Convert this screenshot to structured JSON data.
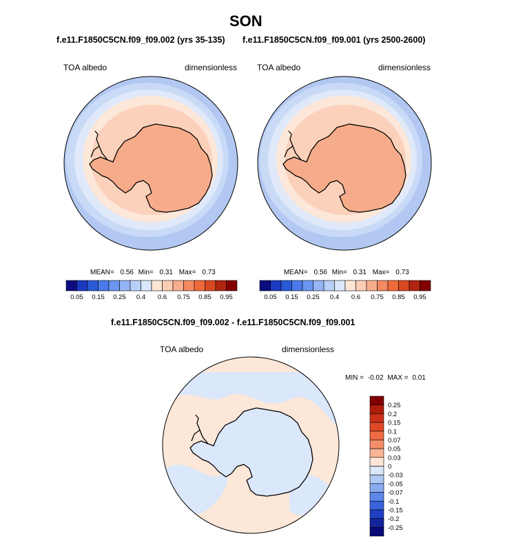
{
  "title": "SON",
  "panels": [
    {
      "subtitle": "f.e11.F1850C5CN.f09_f09.002 (yrs 35-135)",
      "variable": "TOA albedo",
      "units": "dimensionless",
      "stats": {
        "mean_label": "MEAN=",
        "mean": "0.56",
        "min_label": "Min=",
        "min": "0.31",
        "max_label": "Max=",
        "max": "0.73"
      }
    },
    {
      "subtitle": "f.e11.F1850C5CN.f09_f09.001 (yrs 2500-2600)",
      "variable": "TOA albedo",
      "units": "dimensionless",
      "stats": {
        "mean_label": "MEAN=",
        "mean": "0.56",
        "min_label": "Min=",
        "min": "0.31",
        "max_label": "Max=",
        "max": "0.73"
      }
    }
  ],
  "diff_panel": {
    "subtitle": "f.e11.F1850C5CN.f09_f09.002 - f.e11.F1850C5CN.f09_f09.001",
    "variable": "TOA albedo",
    "units": "dimensionless",
    "minmax": {
      "min_label": "MIN =",
      "min": "-0.02",
      "max_label": "MAX =",
      "max": "0.01"
    }
  },
  "chart_data": [
    {
      "type": "heatmap",
      "projection": "south polar stereographic",
      "title": "f.e11.F1850C5CN.f09_f09.002 (yrs 35-135)",
      "colorbar": {
        "orientation": "horizontal",
        "levels": [
          0.05,
          0.1,
          0.15,
          0.2,
          0.25,
          0.3,
          0.4,
          0.5,
          0.6,
          0.65,
          0.7,
          0.75,
          0.8,
          0.85,
          0.9,
          0.95
        ],
        "tick_labels": [
          "0.05",
          "0.15",
          "0.25",
          "0.4",
          "0.6",
          "0.75",
          "0.85",
          "0.95"
        ],
        "colors": [
          "#0d0d80",
          "#1c3ac0",
          "#2a5ad8",
          "#4a7aea",
          "#6a96f0",
          "#94b4f5",
          "#b8d0f8",
          "#dbe7fa",
          "#fde5d6",
          "#fbcdb5",
          "#f8ae8c",
          "#f48a62",
          "#ee6a3a",
          "#d84820",
          "#b02410",
          "#820000"
        ]
      },
      "stats": {
        "mean": 0.56,
        "min": 0.31,
        "max": 0.73
      }
    },
    {
      "type": "heatmap",
      "projection": "south polar stereographic",
      "title": "f.e11.F1850C5CN.f09_f09.001 (yrs 2500-2600)",
      "colorbar": {
        "orientation": "horizontal",
        "levels": [
          0.05,
          0.1,
          0.15,
          0.2,
          0.25,
          0.3,
          0.4,
          0.5,
          0.6,
          0.65,
          0.7,
          0.75,
          0.8,
          0.85,
          0.9,
          0.95
        ],
        "tick_labels": [
          "0.05",
          "0.15",
          "0.25",
          "0.4",
          "0.6",
          "0.75",
          "0.85",
          "0.95"
        ],
        "colors": [
          "#0d0d80",
          "#1c3ac0",
          "#2a5ad8",
          "#4a7aea",
          "#6a96f0",
          "#94b4f5",
          "#b8d0f8",
          "#dbe7fa",
          "#fde5d6",
          "#fbcdb5",
          "#f8ae8c",
          "#f48a62",
          "#ee6a3a",
          "#d84820",
          "#b02410",
          "#820000"
        ]
      },
      "stats": {
        "mean": 0.56,
        "min": 0.31,
        "max": 0.73
      }
    },
    {
      "type": "heatmap",
      "projection": "south polar stereographic",
      "title": "f.e11.F1850C5CN.f09_f09.002 - f.e11.F1850C5CN.f09_f09.001",
      "colorbar": {
        "orientation": "vertical",
        "tick_labels": [
          "0.25",
          "0.2",
          "0.15",
          "0.1",
          "0.07",
          "0.05",
          "0.03",
          "0",
          "-0.03",
          "-0.05",
          "-0.07",
          "-0.1",
          "-0.15",
          "-0.2",
          "-0.25"
        ],
        "colors": [
          "#820000",
          "#b01c0c",
          "#cc3018",
          "#e04828",
          "#ee6a42",
          "#f48e68",
          "#f8b494",
          "#fde5d6",
          "#dbe7fa",
          "#b0c8f4",
          "#8aaaf0",
          "#5c88ea",
          "#3a62dc",
          "#2040c4",
          "#14249c",
          "#0a0a78"
        ]
      },
      "stats": {
        "min": -0.02,
        "max": 0.01
      }
    }
  ]
}
